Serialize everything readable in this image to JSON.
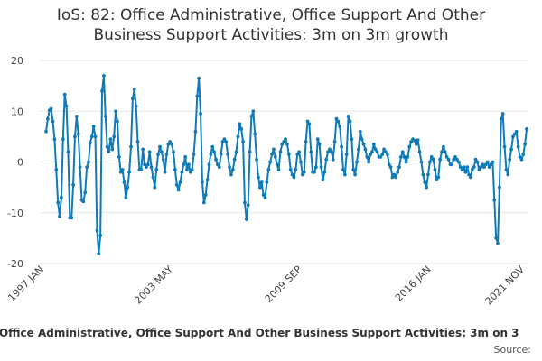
{
  "title_lines": [
    "IoS: 82: Office Administrative, Office Support And Other",
    "Business Support Activities: 3m on 3m growth"
  ],
  "legend_text": ": Office Administrative, Office Support And Other Business Support Activities: 3m on 3",
  "source_label": "Source:",
  "chart_data": {
    "type": "line",
    "title": "IoS: 82: Office Administrative, Office Support And Other Business Support Activities: 3m on 3m growth",
    "xlabel": "",
    "ylabel": "",
    "ylim": [
      -20,
      20
    ],
    "yticks": [
      -20,
      -10,
      0,
      10,
      20
    ],
    "x_tick_labels": [
      "1997 JAN",
      "2003 MAY",
      "2009 SEP",
      "2016 JAN",
      "2021 NOV"
    ],
    "grid": true,
    "series": [
      {
        "name": "",
        "color": "#0f7ab8",
        "x_start": "1997 JAN",
        "x_end": "2021 NOV",
        "values": [
          6.0,
          8.5,
          10.2,
          10.5,
          8.0,
          4.5,
          -1.5,
          -8.0,
          -10.7,
          -7.0,
          4.5,
          13.3,
          11.0,
          2.0,
          -11.0,
          -11.0,
          -4.5,
          5.0,
          9.0,
          5.5,
          -1.0,
          -7.5,
          -7.8,
          -6.0,
          -1.0,
          0.0,
          3.8,
          5.0,
          7.0,
          5.0,
          -13.5,
          -18.0,
          -14.5,
          14.0,
          17.0,
          9.0,
          3.0,
          2.0,
          4.5,
          2.5,
          5.0,
          10.0,
          8.0,
          1.0,
          -2.0,
          -1.5,
          -4.0,
          -7.0,
          -5.0,
          -2.0,
          3.0,
          12.5,
          14.3,
          11.0,
          4.0,
          -1.5,
          -1.5,
          2.5,
          -0.5,
          -1.0,
          -0.5,
          2.0,
          -1.0,
          -3.0,
          -5.0,
          -1.5,
          1.5,
          3.0,
          2.0,
          0.5,
          -2.0,
          1.5,
          3.5,
          4.0,
          3.5,
          2.0,
          -1.5,
          -4.5,
          -5.5,
          -4.0,
          -2.0,
          -0.5,
          1.0,
          -1.5,
          -0.5,
          -2.0,
          -1.5,
          1.5,
          6.0,
          13.0,
          16.5,
          9.5,
          -4.0,
          -8.0,
          -6.5,
          -3.5,
          -0.5,
          1.5,
          3.0,
          2.0,
          0.5,
          -0.5,
          -1.0,
          1.5,
          4.0,
          4.5,
          4.0,
          1.5,
          -1.0,
          -2.5,
          -1.5,
          0.5,
          2.0,
          5.0,
          7.5,
          6.5,
          4.0,
          -8.0,
          -11.3,
          -8.5,
          2.0,
          9.0,
          10.0,
          5.5,
          0.5,
          -3.0,
          -5.0,
          -4.0,
          -6.5,
          -7.0,
          -4.0,
          -1.5,
          0.0,
          1.5,
          2.5,
          1.0,
          -0.5,
          -1.5,
          2.0,
          3.5,
          4.0,
          4.5,
          3.5,
          1.5,
          -1.5,
          -2.5,
          -3.0,
          -1.5,
          1.5,
          2.0,
          0.0,
          -2.5,
          -2.0,
          4.0,
          8.0,
          7.5,
          2.0,
          -2.0,
          -2.0,
          -1.0,
          4.5,
          3.5,
          -1.0,
          -3.5,
          -2.0,
          0.5,
          2.0,
          2.5,
          2.0,
          0.5,
          4.0,
          8.5,
          8.0,
          7.0,
          3.0,
          -1.5,
          -2.5,
          1.5,
          9.0,
          8.0,
          4.5,
          -1.5,
          -2.5,
          0.0,
          2.5,
          6.0,
          4.5,
          3.5,
          2.5,
          1.0,
          0.0,
          1.5,
          2.0,
          3.5,
          2.5,
          2.0,
          1.0,
          1.0,
          1.5,
          2.5,
          2.0,
          1.5,
          -0.5,
          -1.0,
          -3.0,
          -2.5,
          -3.0,
          -2.0,
          -1.0,
          1.0,
          2.0,
          1.0,
          0.0,
          1.0,
          3.0,
          4.0,
          4.5,
          4.2,
          3.5,
          4.3,
          2.0,
          0.0,
          -2.5,
          -4.0,
          -5.0,
          -2.5,
          0.0,
          1.0,
          0.5,
          -1.5,
          -3.5,
          -3.0,
          0.5,
          2.0,
          3.0,
          2.0,
          1.0,
          0.5,
          -0.5,
          -0.5,
          0.5,
          1.0,
          0.5,
          0.0,
          -1.0,
          -1.5,
          -1.0,
          -2.0,
          -1.0,
          -2.5,
          -3.0,
          -1.5,
          -1.0,
          0.5,
          0.0,
          -1.5,
          -1.0,
          -0.5,
          -1.0,
          -0.5,
          0.0,
          -1.0,
          -0.5,
          0.0,
          -7.5,
          -15.0,
          -16.0,
          -5.0,
          8.5,
          9.5,
          3.0,
          -1.5,
          -2.5,
          0.5,
          2.5,
          5.0,
          5.5,
          6.0,
          3.0,
          1.0,
          0.5,
          1.5,
          3.5,
          6.5
        ]
      }
    ]
  }
}
